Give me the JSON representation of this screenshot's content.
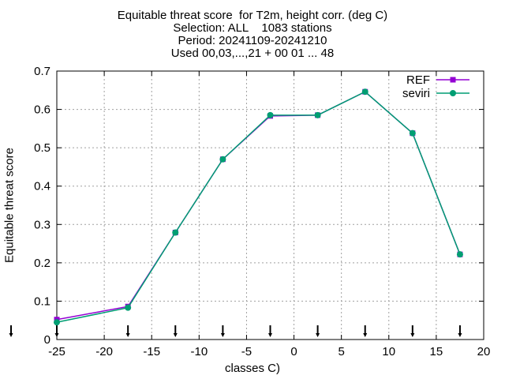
{
  "chart_data": {
    "type": "line",
    "title_lines": [
      "Equitable threat score  for T2m, height corr. (deg C)",
      "Selection: ALL    1083 stations",
      "Period: 20241109-20241210",
      "Used 00,03,...,21 + 00 01 ... 48"
    ],
    "xlabel": "classes C)",
    "ylabel": "Equitable threat score",
    "xlim": [
      -25,
      20
    ],
    "ylim": [
      0,
      0.7
    ],
    "xticks": [
      -25,
      -20,
      -15,
      -10,
      -5,
      0,
      5,
      10,
      15,
      20
    ],
    "yticks": [
      0,
      0.1,
      0.2,
      0.3,
      0.4,
      0.5,
      0.6,
      0.7
    ],
    "xtick_labels": [
      "-25",
      "-20",
      "-15",
      "-10",
      "-5",
      "0",
      "5",
      "10",
      "15",
      "20"
    ],
    "ytick_labels": [
      "0",
      "0.1",
      "0.2",
      "0.3",
      "0.4",
      "0.5",
      "0.6",
      "0.7"
    ],
    "class_markers_x": [
      -25,
      -17.5,
      -12.5,
      -7.5,
      -2.5,
      2.5,
      7.5,
      12.5,
      17.5
    ],
    "grid": true,
    "legend_position": "top-right",
    "x": [
      -25,
      -17.5,
      -12.5,
      -7.5,
      -2.5,
      2.5,
      7.5,
      12.5,
      17.5
    ],
    "series": [
      {
        "name": "REF",
        "color": "#9400d3",
        "values": [
          0.052,
          0.086,
          0.279,
          0.47,
          0.583,
          0.585,
          0.646,
          0.538,
          0.222
        ]
      },
      {
        "name": "seviri",
        "color": "#009e73",
        "values": [
          0.045,
          0.083,
          0.279,
          0.47,
          0.585,
          0.585,
          0.646,
          0.538,
          0.222
        ]
      }
    ]
  }
}
